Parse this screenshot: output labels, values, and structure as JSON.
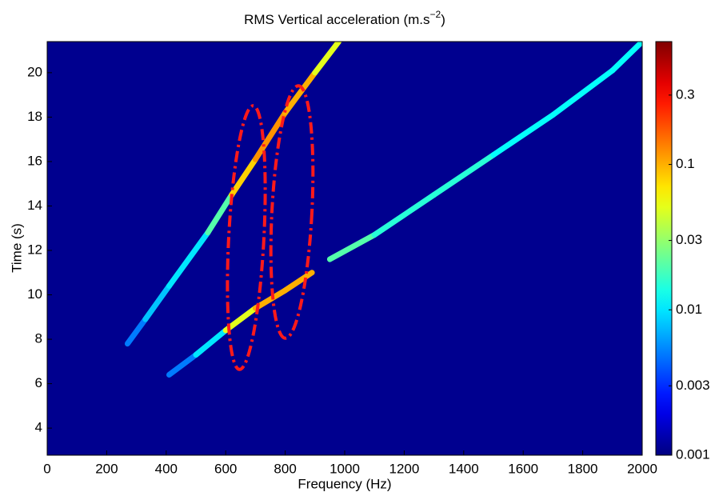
{
  "chart_data": {
    "type": "spectrogram",
    "title": "RMS Vertical acceleration (m.s",
    "title_sup": "−2",
    "title_end": ")",
    "x_label": "Frequency (Hz)",
    "y_label": "Time (s)",
    "xlim": [
      0,
      2000
    ],
    "xticks": [
      0,
      200,
      400,
      600,
      800,
      1000,
      1200,
      1400,
      1600,
      1800,
      2000
    ],
    "ylim": [
      2.78,
      21.4
    ],
    "yticks": [
      4,
      6,
      8,
      10,
      12,
      14,
      16,
      18,
      20
    ],
    "colorbar": {
      "scale": "log",
      "lim": [
        0.001,
        0.7
      ],
      "ticks": [
        0.001,
        0.003,
        0.01,
        0.03,
        0.1,
        0.3
      ]
    },
    "ridges": [
      {
        "x": [
          270,
          330,
          410,
          540,
          620,
          700,
          800,
          900,
          980
        ],
        "y": [
          7.8,
          8.9,
          10.4,
          12.8,
          14.5,
          16.1,
          18.2,
          20.0,
          21.4
        ],
        "values": [
          0.005,
          0.008,
          0.01,
          0.02,
          0.08,
          0.12,
          0.1,
          0.05,
          0.03
        ]
      },
      {
        "x": [
          410,
          500,
          600,
          700,
          800,
          890
        ],
        "y": [
          6.4,
          7.3,
          8.4,
          9.4,
          10.2,
          11.0
        ],
        "values": [
          0.005,
          0.01,
          0.05,
          0.1,
          0.1,
          0.06
        ]
      },
      {
        "x": [
          950,
          1100,
          1300,
          1500,
          1700,
          1900,
          2000
        ],
        "y": [
          11.6,
          12.7,
          14.5,
          16.3,
          18.1,
          20.1,
          21.4
        ],
        "values": [
          0.02,
          0.015,
          0.015,
          0.012,
          0.012,
          0.012,
          0.01
        ]
      }
    ]
  }
}
